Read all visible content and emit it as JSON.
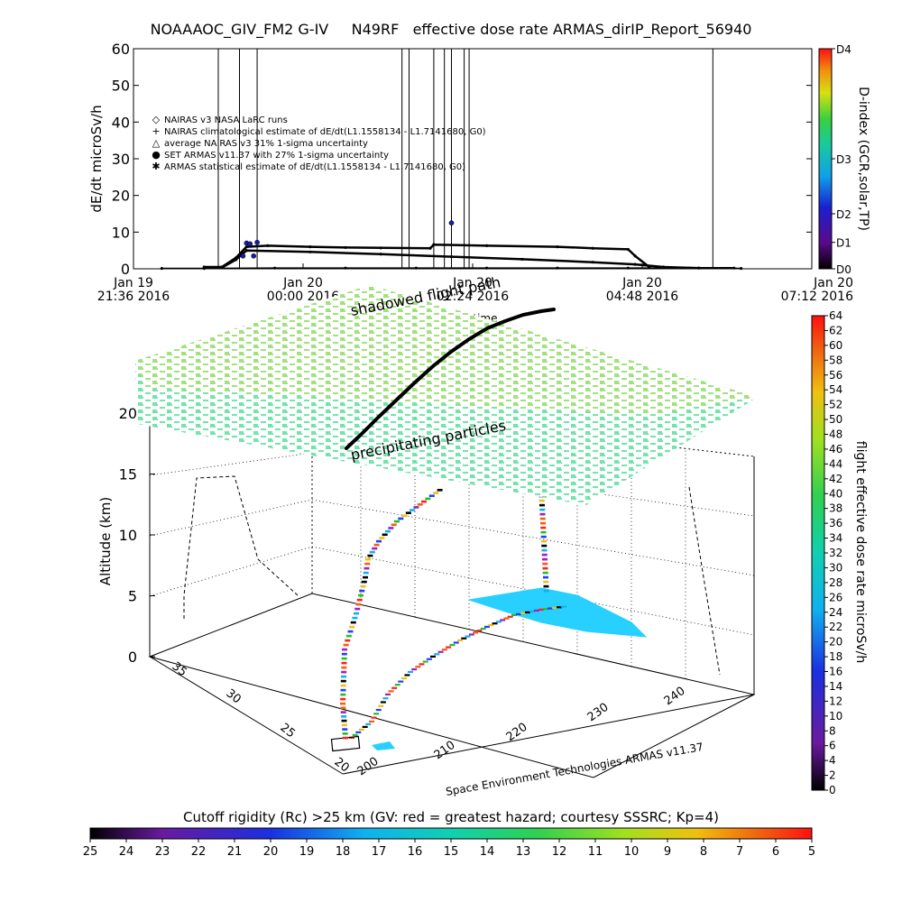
{
  "title": "NOAAAOC_GIV_FM2 G-IV     N49RF   effective dose rate ARMAS_dirIP_Report_56940",
  "chart_data": [
    {
      "type": "line",
      "ylabel": "dE/dt microSv/h",
      "ylim": [
        0,
        60
      ],
      "yticks": [
        "0",
        "10",
        "20",
        "30",
        "40",
        "50",
        "60"
      ],
      "xlabel": "UT time",
      "xticks": [
        {
          "date": "Jan 19",
          "time": "21:36 2016"
        },
        {
          "date": "Jan 20",
          "time": "00:00 2016"
        },
        {
          "date": "Jan 20",
          "time": "02:24 2016"
        },
        {
          "date": "Jan 20",
          "time": "04:48 2016"
        },
        {
          "date": "Jan 20",
          "time": "07:12 2016"
        }
      ],
      "x_hours_since_1936": [
        0,
        2.4,
        4.8,
        7.2,
        9.6
      ],
      "legend": [
        {
          "symbol": "◇",
          "label": "NAIRAS v3 NASA LaRC runs"
        },
        {
          "symbol": "+",
          "label": "NAIRAS climatological estimate of dE/dt(L1.1558134 - L1.7141680, G0)"
        },
        {
          "symbol": "△",
          "label": "average NAIRAS v3 31% 1-sigma uncertainty"
        },
        {
          "symbol": "●",
          "label": "SET ARMAS v11.37 with 27% 1-sigma uncertainty"
        },
        {
          "symbol": "✱",
          "label": "ARMAS statistical estimate of dE/dt(L1.1558134 - L1.7141680, G0)"
        }
      ],
      "series": [
        {
          "name": "NAIRAS climatological estimate",
          "x": [
            1.0,
            1.25,
            1.45,
            1.6,
            1.9,
            2.5,
            3.0,
            3.5,
            4.2,
            4.25,
            5.0,
            6.0,
            6.5,
            7.0,
            7.1,
            7.3
          ],
          "y": [
            0.5,
            0.5,
            3.0,
            6.0,
            6.3,
            6.0,
            5.8,
            5.7,
            5.6,
            6.6,
            6.3,
            6.0,
            5.6,
            5.3,
            3.5,
            0.5
          ]
        },
        {
          "name": "ARMAS statistical estimate",
          "x": [
            1.0,
            1.25,
            1.45,
            1.6,
            2.5,
            3.5,
            4.5,
            5.5,
            6.5,
            7.1,
            7.5,
            8.0,
            8.5
          ],
          "y": [
            0.3,
            0.3,
            2.5,
            5.0,
            4.6,
            4.0,
            3.3,
            2.6,
            1.8,
            1.2,
            0.5,
            0.2,
            0.2
          ]
        },
        {
          "name": "NAIRAS v3 NASA LaRC runs",
          "x": [
            0.4,
            1.0,
            2.0,
            3.0,
            4.0,
            5.0,
            6.0,
            7.0,
            8.0,
            8.6
          ],
          "y": [
            0.1,
            0.1,
            0.2,
            0.2,
            0.2,
            0.2,
            0.2,
            0.2,
            0.2,
            0.1
          ]
        }
      ],
      "armas_points": [
        {
          "x": 1.55,
          "y": 3.5
        },
        {
          "x": 1.7,
          "y": 3.5
        },
        {
          "x": 1.6,
          "y": 7.0
        },
        {
          "x": 1.65,
          "y": 6.8
        },
        {
          "x": 1.75,
          "y": 7.2
        },
        {
          "x": 4.5,
          "y": 12.5
        }
      ],
      "vertical_lines_x": [
        1.2,
        1.5,
        1.75,
        3.8,
        3.9,
        4.25,
        4.4,
        4.5,
        4.68,
        4.75,
        8.2
      ],
      "colorbar": {
        "label": "D-index (GCR,solar,TP)",
        "ticks": [
          "D0",
          "D1",
          "D2",
          "D3",
          "D4"
        ]
      }
    },
    {
      "type": "scatter",
      "ylabel": "Altitude (km)",
      "zticks": [
        "0",
        "5",
        "10",
        "15",
        "20"
      ],
      "y_axis_ticks": [
        "20",
        "25",
        "30",
        "35"
      ],
      "x_axis_ticks": [
        "200",
        "210",
        "220",
        "230",
        "240"
      ],
      "annotations": [
        "shadowed flight path",
        "precipitating particles"
      ],
      "footer": "Space Environment Technologies ARMAS v11.37",
      "colorbar": {
        "label": "flight effective dose rate microSv/h",
        "ticks": [
          "0",
          "2",
          "4",
          "6",
          "8",
          "10",
          "12",
          "14",
          "16",
          "18",
          "20",
          "22",
          "24",
          "26",
          "28",
          "30",
          "32",
          "34",
          "36",
          "38",
          "40",
          "42",
          "44",
          "46",
          "48",
          "50",
          "52",
          "54",
          "56",
          "58",
          "60",
          "62",
          "64"
        ]
      }
    }
  ],
  "bottom_colorbar": {
    "title": "Cutoff rigidity (Rc) >25 km (GV: red = greatest hazard; courtesy SSSRC; Kp=4)",
    "ticks": [
      "25",
      "24",
      "23",
      "22",
      "21",
      "20",
      "19",
      "18",
      "17",
      "16",
      "15",
      "14",
      "13",
      "12",
      "11",
      "10",
      "9",
      "8",
      "7",
      "6",
      "5"
    ]
  },
  "colors": {
    "armas_point": "#1a1aa8",
    "flight_path": "#000000",
    "precip_field": "#3ad98a",
    "ground_field": "#27d0ff"
  }
}
